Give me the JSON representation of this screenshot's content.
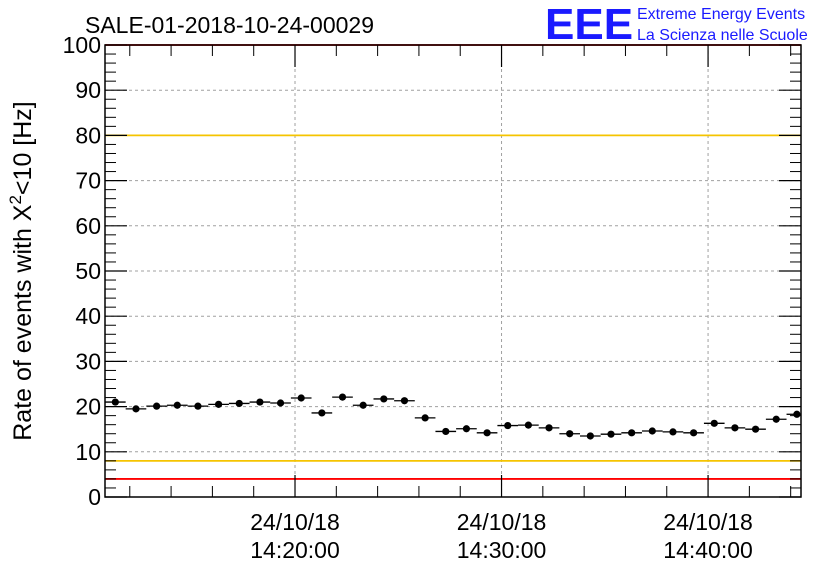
{
  "chart_data": {
    "type": "scatter",
    "title": "SALE-01-2018-10-24-00029",
    "logo": {
      "mark": "EEE",
      "line1": "Extreme Energy Events",
      "line2": "La Scienza nelle Scuole"
    },
    "ylabel": {
      "prefix": "Rate of events with X",
      "superscript": "2",
      "suffix": "<10 [Hz]"
    },
    "xlim_minutes": [
      -19.2,
      14.5
    ],
    "ylim": [
      0,
      100
    ],
    "y_ticks": [
      0,
      10,
      20,
      30,
      40,
      50,
      60,
      70,
      80,
      90,
      100
    ],
    "grid": true,
    "x_ticks": [
      {
        "minute": -10,
        "date": "24/10/18",
        "time": "14:20:00"
      },
      {
        "minute": 0,
        "date": "24/10/18",
        "time": "14:30:00"
      },
      {
        "minute": 10,
        "date": "24/10/18",
        "time": "14:40:00"
      }
    ],
    "bin_width_minutes": 1,
    "series": [
      {
        "x_minutes": [
          -18.7,
          -17.7,
          -16.7,
          -15.7,
          -14.7,
          -13.7,
          -12.7,
          -11.7,
          -10.7,
          -9.7,
          -8.7,
          -7.7,
          -6.7,
          -5.7,
          -4.7,
          -3.7,
          -2.7,
          -1.7,
          -0.7,
          0.3,
          1.3,
          2.3,
          3.3,
          4.3,
          5.3,
          6.3,
          7.3,
          8.3,
          9.3,
          10.3,
          11.3,
          12.3,
          13.3,
          14.3
        ],
        "values": [
          21.0,
          19.5,
          20.1,
          20.3,
          20.1,
          20.5,
          20.7,
          21.0,
          20.8,
          21.9,
          18.6,
          22.1,
          20.3,
          21.7,
          21.3,
          17.5,
          14.5,
          15.1,
          14.2,
          15.8,
          15.9,
          15.3,
          14.0,
          13.5,
          13.9,
          14.2,
          14.6,
          14.4,
          14.2,
          16.3,
          15.3,
          15.0,
          17.2,
          18.3
        ],
        "errors": [
          0.6,
          0.6,
          0.6,
          0.6,
          0.6,
          0.6,
          0.6,
          0.6,
          0.6,
          0.6,
          0.6,
          0.6,
          0.6,
          0.6,
          0.6,
          0.6,
          0.5,
          0.5,
          0.5,
          0.5,
          0.5,
          0.5,
          0.5,
          0.5,
          0.5,
          0.5,
          0.5,
          0.5,
          0.5,
          0.5,
          0.5,
          0.5,
          0.5,
          0.5
        ]
      }
    ],
    "reference_lines": [
      {
        "y": 100,
        "color": "#ff0000"
      },
      {
        "y": 80,
        "color": "#f5c400"
      },
      {
        "y": 8,
        "color": "#f5c400"
      },
      {
        "y": 4,
        "color": "#ff0000"
      }
    ],
    "marker_color": "#000000"
  }
}
